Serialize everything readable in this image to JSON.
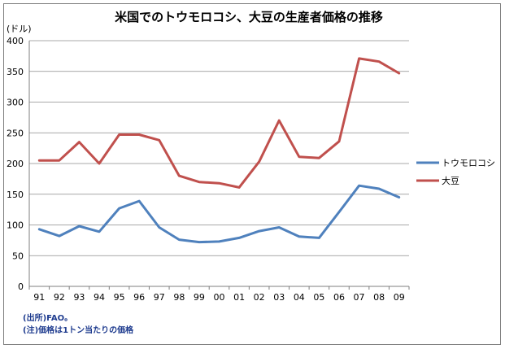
{
  "chart_data": {
    "type": "line",
    "title": "米国でのトウモロコシ、大豆の生産者価格の推移",
    "ylabel": "(ドル)",
    "xlabel": "",
    "categories": [
      "91",
      "92",
      "93",
      "94",
      "95",
      "96",
      "97",
      "98",
      "99",
      "00",
      "01",
      "02",
      "03",
      "04",
      "05",
      "06",
      "07",
      "08",
      "09"
    ],
    "ylim": [
      0,
      400
    ],
    "yticks": [
      0,
      50,
      100,
      150,
      200,
      250,
      300,
      350,
      400
    ],
    "grid": true,
    "legend_position": "right",
    "series": [
      {
        "name": "トウモロコシ",
        "color": "#4f81bd",
        "values": [
          93,
          82,
          98,
          89,
          127,
          139,
          96,
          76,
          72,
          73,
          79,
          90,
          96,
          81,
          79,
          121,
          164,
          159,
          145
        ]
      },
      {
        "name": "大豆",
        "color": "#c0504d",
        "values": [
          205,
          205,
          235,
          200,
          247,
          247,
          238,
          180,
          170,
          168,
          161,
          203,
          270,
          211,
          209,
          236,
          371,
          366,
          347
        ]
      }
    ]
  },
  "notes": [
    "(出所)FAO。",
    "(注)価格は1トン当たりの価格"
  ]
}
